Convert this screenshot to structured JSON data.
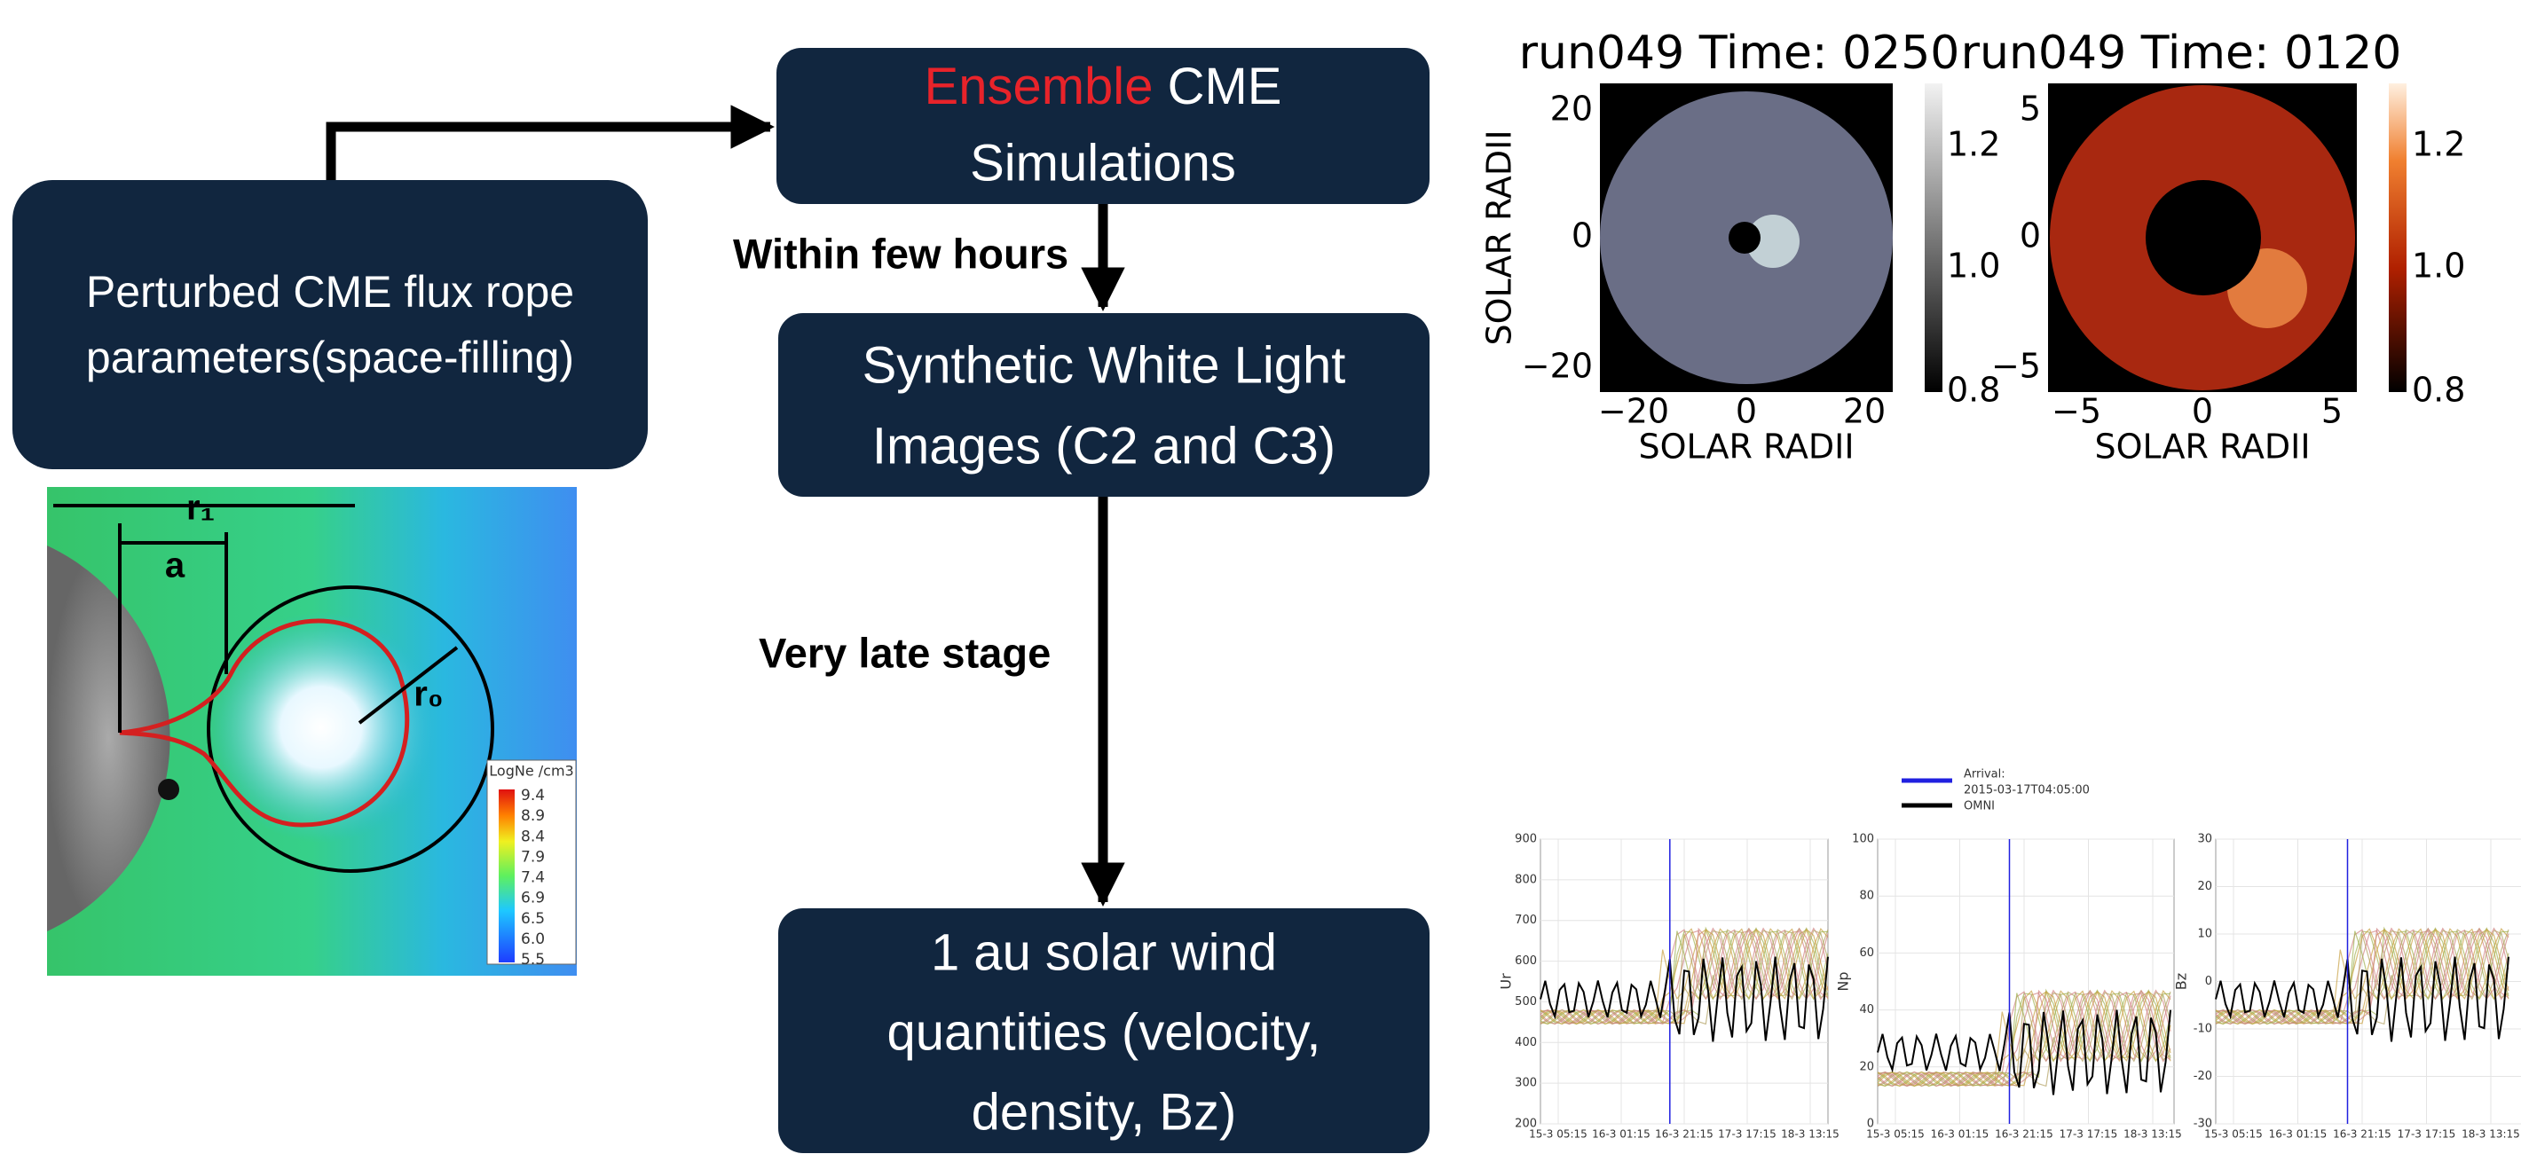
{
  "boxes": {
    "perturbed": {
      "lines": [
        "Perturbed CME flux rope",
        "parameters(space-filling)"
      ]
    },
    "ensemble": {
      "highlight": "Ensemble",
      "rest": " CME",
      "line2": "Simulations"
    },
    "synthetic": {
      "lines": [
        "Synthetic White Light",
        "Images (C2 and C3)"
      ]
    },
    "solar_wind": {
      "lines": [
        "1 au solar wind",
        "quantities (velocity,",
        "density, Bz)"
      ]
    }
  },
  "arrow_labels": {
    "within": "Within few hours",
    "late": "Very late stage"
  },
  "flux_rope": {
    "labels": {
      "r1": "r₁",
      "a": "a",
      "r0": "r₀"
    },
    "colorbar_title": "LogNe /cm3",
    "colorbar_ticks": [
      "9.4",
      "8.9",
      "8.4",
      "7.9",
      "7.4",
      "6.9",
      "6.5",
      "6.0",
      "5.5"
    ]
  },
  "coronagraph": [
    {
      "title": "run049 Time: 0250",
      "ylabel": "SOLAR RADII",
      "xlabel": "SOLAR RADII",
      "yticks": [
        "20",
        "0",
        "−20"
      ],
      "xticks": [
        "−20",
        "0",
        "20"
      ],
      "cbar_ticks": [
        "1.2",
        "1.0",
        "0.8"
      ]
    },
    {
      "title": "run049 Time: 0120",
      "xlabel": "SOLAR RADII",
      "yticks": [
        "5",
        "0",
        "−5"
      ],
      "xticks": [
        "−5",
        "0",
        "5"
      ],
      "cbar_ticks": [
        "1.2",
        "1.0",
        "0.8"
      ]
    }
  ],
  "wind": {
    "legend": {
      "arrival": "Arrival:",
      "arrival_time": "2015-03-17T04:05:00",
      "omni": "OMNI"
    },
    "xticks": [
      "15-3 05:15",
      "16-3 01:15",
      "16-3 21:15",
      "17-3 17:15",
      "18-3 13:15"
    ],
    "panels": [
      {
        "ylabel": "Ur",
        "yticks": [
          "900",
          "800",
          "700",
          "600",
          "500",
          "400",
          "300",
          "200"
        ]
      },
      {
        "ylabel": "Np",
        "yticks": [
          "100",
          "80",
          "60",
          "40",
          "20",
          "0"
        ]
      },
      {
        "ylabel": "Bz",
        "yticks": [
          "30",
          "20",
          "10",
          "0",
          "-10",
          "-20",
          "-30"
        ]
      }
    ]
  }
}
